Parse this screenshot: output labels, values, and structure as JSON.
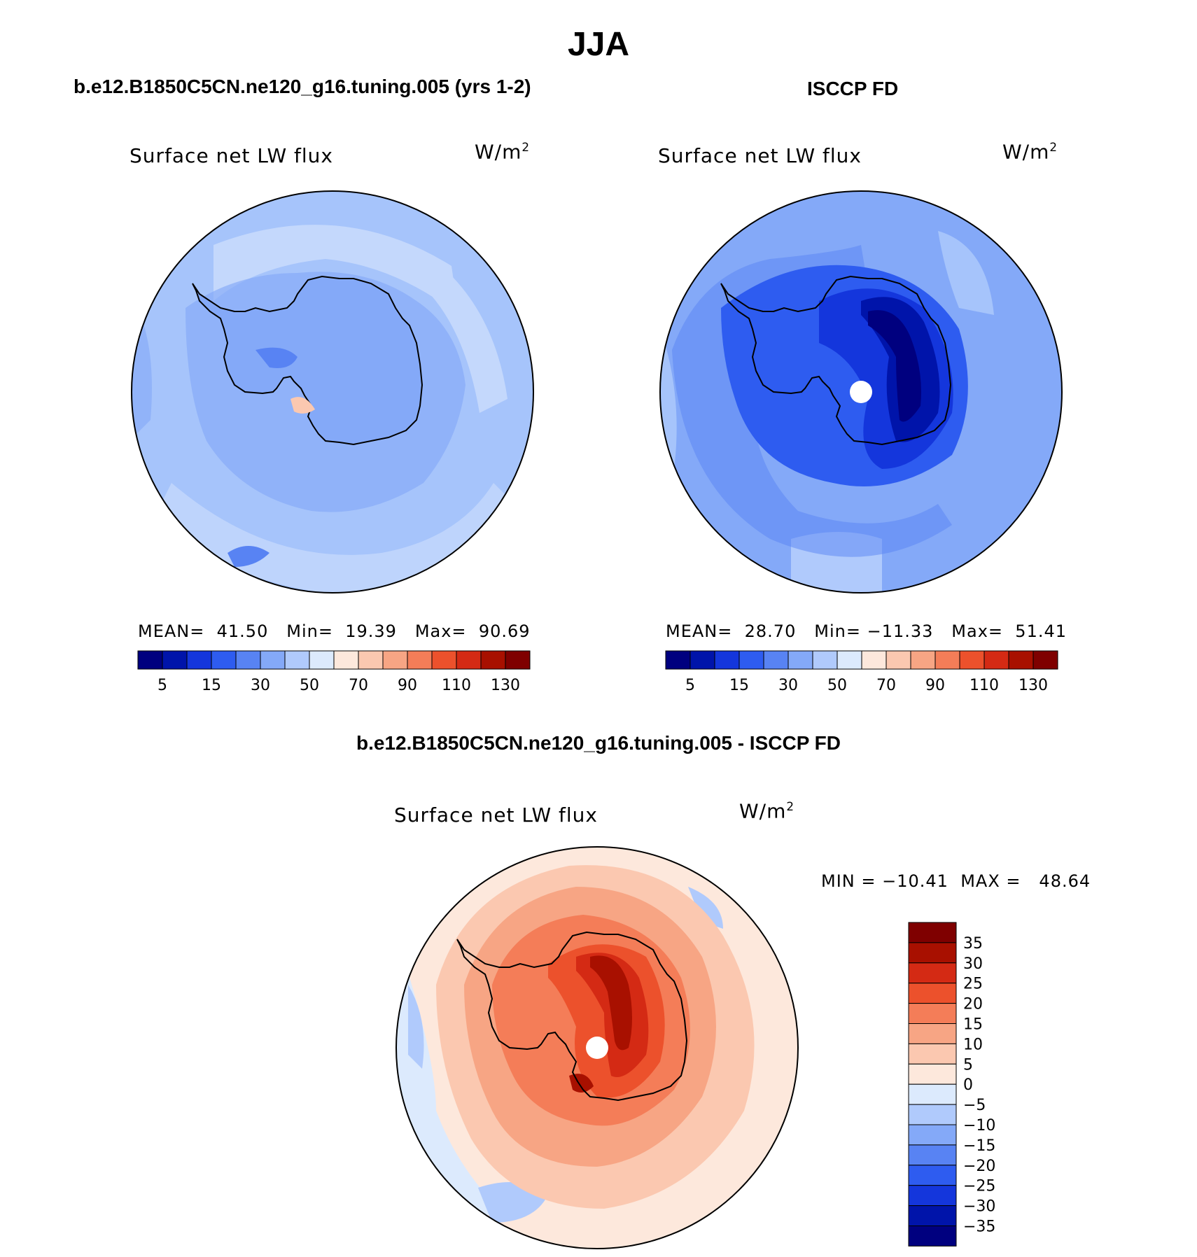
{
  "title": "JJA",
  "panels": [
    {
      "case_label": "b.e12.B1850C5CN.ne120_g16.tuning.005 (yrs 1-2)",
      "variable": "Surface net LW flux",
      "units_base": "W/m",
      "units_exp": "2",
      "stats": {
        "mean_label": "MEAN=",
        "mean": "41.50",
        "min_label": "Min=",
        "min": "19.39",
        "max_label": "Max=",
        "max": "90.69"
      },
      "colorbar_labels": [
        "5",
        "15",
        "30",
        "50",
        "70",
        "90",
        "110",
        "130"
      ],
      "background_color": "#a6c4fb"
    },
    {
      "case_label": "ISCCP FD",
      "variable": "Surface net LW flux",
      "units_base": "W/m",
      "units_exp": "2",
      "stats": {
        "mean_label": "MEAN=",
        "mean": "28.70",
        "min_label": "Min=",
        "min": "−11.33",
        "max_label": "Max=",
        "max": "51.41"
      },
      "colorbar_labels": [
        "5",
        "15",
        "30",
        "50",
        "70",
        "90",
        "110",
        "130"
      ],
      "background_color": "#84a9f8"
    },
    {
      "case_label": "b.e12.B1850C5CN.ne120_g16.tuning.005 - ISCCP FD",
      "variable": "Surface net LW flux",
      "units_base": "W/m",
      "units_exp": "2",
      "stats": {
        "min_label": "MIN =",
        "min": "−10.41",
        "max_label": "MAX =",
        "max": "48.64"
      },
      "colorbar_labels": [
        "35",
        "30",
        "25",
        "20",
        "15",
        "10",
        "5",
        "0",
        "−5",
        "−10",
        "−15",
        "−20",
        "−25",
        "−30",
        "−35"
      ],
      "background_color": "#fcd2bd"
    }
  ],
  "colorbars": {
    "abs_colors": [
      "#00007f",
      "#0014aa",
      "#1436dc",
      "#2e5cf0",
      "#5883f3",
      "#84a9f8",
      "#b0cafc",
      "#dceafd",
      "#fde8dc",
      "#fbc8b0",
      "#f7a584",
      "#f47d58",
      "#ec512c",
      "#d42a14",
      "#a81000",
      "#7f0000"
    ],
    "diff_colors": [
      "#7f0000",
      "#a81000",
      "#d42a14",
      "#ec512c",
      "#f47d58",
      "#f7a584",
      "#fbc8b0",
      "#fde8dc",
      "#dceafd",
      "#b0cafc",
      "#84a9f8",
      "#5883f3",
      "#2e5cf0",
      "#1436dc",
      "#0014aa",
      "#00007f"
    ]
  }
}
